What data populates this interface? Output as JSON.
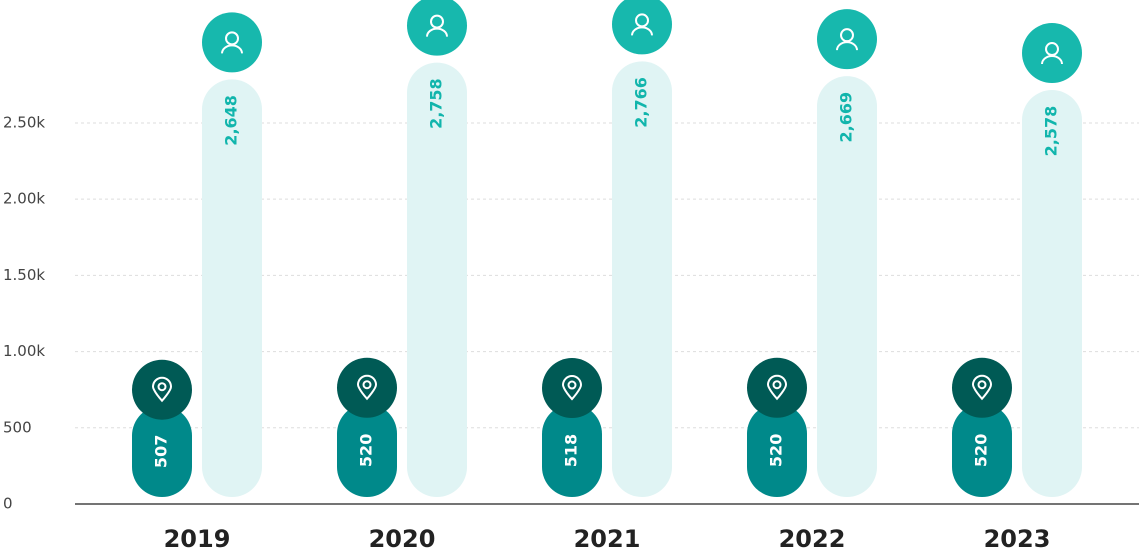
{
  "chart_data": {
    "type": "bar",
    "categories": [
      "2019",
      "2020",
      "2021",
      "2022",
      "2023"
    ],
    "series": [
      {
        "color": "#00898a",
        "values": [
          507,
          520,
          518,
          520,
          520
        ]
      },
      {
        "color": "#e0f4f4",
        "values": [
          2648,
          2758,
          2766,
          2669,
          2578
        ],
        "value_labels": [
          "2,648",
          "2,758",
          "2,766",
          "2,669",
          "2,578"
        ]
      }
    ],
    "ylim": [
      0,
      3300
    ],
    "yticks": [
      0,
      500,
      {
        "value": 1000,
        "label": "1.00k"
      },
      {
        "value": 1500,
        "label": "1.50k"
      },
      {
        "value": 2000,
        "label": "2.00k"
      },
      {
        "value": 2500,
        "label": "2.50k"
      }
    ],
    "grid": true
  }
}
